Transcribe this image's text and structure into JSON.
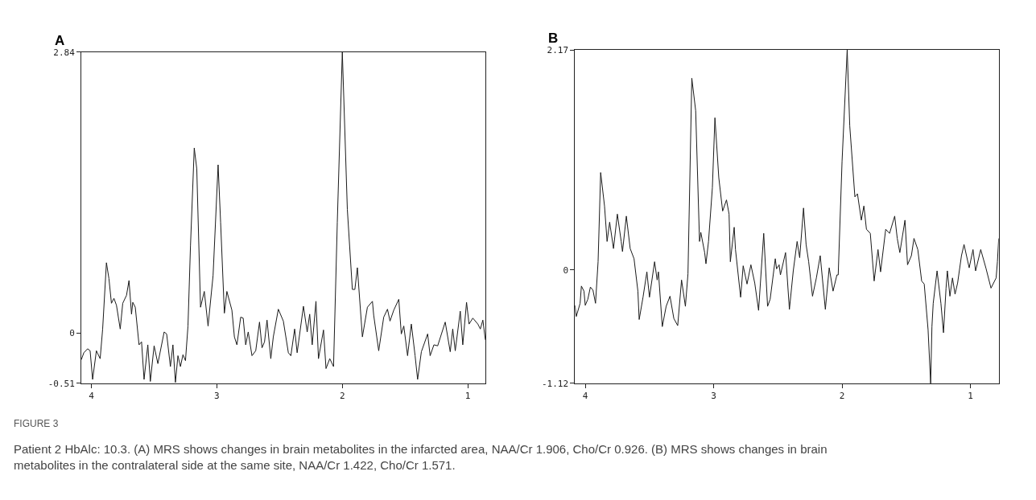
{
  "chart_data": [
    {
      "type": "line",
      "title": "A",
      "xlim": [
        4.08,
        0.86
      ],
      "xticks": [
        4,
        3,
        2,
        1
      ],
      "ylim": [
        -0.51,
        2.84
      ],
      "yticks": [
        2.84,
        0,
        -0.51
      ],
      "marker": "none",
      "line_style": "solid",
      "annotations": [
        "FIGURE 3",
        "Patient 2 HbAlc: 10.3. (A) MRS shows changes in brain metabolites in the infarcted area, NAA/Cr 1.906, Cho/Cr 0.926. (B) MRS shows changes in brain metabolites in the contralateral side at the same site, NAA/Cr 1.422, Cho/Cr 1.571."
      ],
      "x": [
        4.08,
        4.06,
        4.03,
        4.01,
        3.99,
        3.96,
        3.93,
        3.91,
        3.88,
        3.86,
        3.84,
        3.82,
        3.8,
        3.77,
        3.75,
        3.72,
        3.7,
        3.68,
        3.67,
        3.65,
        3.62,
        3.6,
        3.58,
        3.55,
        3.53,
        3.5,
        3.47,
        3.42,
        3.4,
        3.37,
        3.35,
        3.33,
        3.31,
        3.29,
        3.27,
        3.25,
        3.23,
        3.21,
        3.18,
        3.16,
        3.13,
        3.1,
        3.07,
        3.03,
        2.99,
        2.97,
        2.94,
        2.92,
        2.88,
        2.86,
        2.84,
        2.81,
        2.79,
        2.77,
        2.75,
        2.72,
        2.69,
        2.66,
        2.64,
        2.62,
        2.6,
        2.57,
        2.55,
        2.51,
        2.47,
        2.43,
        2.41,
        2.38,
        2.36,
        2.31,
        2.28,
        2.26,
        2.24,
        2.21,
        2.19,
        2.15,
        2.13,
        2.1,
        2.07,
        2.04,
        2.0,
        1.96,
        1.92,
        1.9,
        1.88,
        1.84,
        1.8,
        1.76,
        1.75,
        1.71,
        1.67,
        1.64,
        1.62,
        1.59,
        1.55,
        1.53,
        1.51,
        1.48,
        1.45,
        1.42,
        1.4,
        1.37,
        1.32,
        1.3,
        1.27,
        1.24,
        1.18,
        1.14,
        1.12,
        1.1,
        1.06,
        1.04,
        1.01,
        0.99,
        0.96,
        0.92,
        0.9,
        0.88,
        0.86
      ],
      "series": [
        {
          "color": "#1a1a1a",
          "values": [
            -0.27,
            -0.2,
            -0.16,
            -0.18,
            -0.47,
            -0.18,
            -0.26,
            0.04,
            0.71,
            0.55,
            0.3,
            0.35,
            0.28,
            0.04,
            0.3,
            0.38,
            0.53,
            0.19,
            0.31,
            0.26,
            -0.12,
            -0.09,
            -0.47,
            -0.12,
            -0.49,
            -0.13,
            -0.31,
            0.01,
            -0.01,
            -0.34,
            -0.12,
            -0.5,
            -0.23,
            -0.34,
            -0.22,
            -0.28,
            0.07,
            0.88,
            1.87,
            1.66,
            0.26,
            0.42,
            0.07,
            0.58,
            1.7,
            1.12,
            0.2,
            0.42,
            0.23,
            -0.04,
            -0.12,
            0.16,
            0.15,
            -0.12,
            0.01,
            -0.23,
            -0.18,
            0.11,
            -0.15,
            -0.09,
            0.13,
            -0.26,
            -0.04,
            0.24,
            0.12,
            -0.2,
            -0.23,
            0.04,
            -0.2,
            0.27,
            0.01,
            0.19,
            -0.12,
            0.32,
            -0.26,
            0.03,
            -0.36,
            -0.26,
            -0.34,
            1.12,
            2.84,
            1.25,
            0.44,
            0.44,
            0.66,
            -0.04,
            0.26,
            0.32,
            0.18,
            -0.18,
            0.16,
            0.24,
            0.12,
            0.23,
            0.34,
            -0.01,
            0.07,
            -0.23,
            0.09,
            -0.23,
            -0.47,
            -0.19,
            -0.01,
            -0.23,
            -0.12,
            -0.13,
            0.11,
            -0.19,
            0.04,
            -0.18,
            0.22,
            -0.12,
            0.31,
            0.09,
            0.15,
            0.09,
            0.04,
            0.13,
            -0.07
          ]
        }
      ]
    },
    {
      "type": "line",
      "title": "B",
      "xlim": [
        4.08,
        0.78
      ],
      "xticks": [
        4,
        3,
        2,
        1
      ],
      "ylim": [
        -1.12,
        2.17
      ],
      "yticks": [
        2.17,
        0,
        -1.12
      ],
      "marker": "none",
      "line_style": "solid",
      "x": [
        4.08,
        4.07,
        4.04,
        4.03,
        4.01,
        4.0,
        3.98,
        3.96,
        3.94,
        3.92,
        3.9,
        3.88,
        3.85,
        3.83,
        3.81,
        3.78,
        3.75,
        3.72,
        3.71,
        3.68,
        3.65,
        3.62,
        3.59,
        3.58,
        3.55,
        3.52,
        3.5,
        3.46,
        3.44,
        3.43,
        3.4,
        3.37,
        3.34,
        3.31,
        3.28,
        3.25,
        3.22,
        3.2,
        3.17,
        3.14,
        3.11,
        3.1,
        3.07,
        3.06,
        3.04,
        3.01,
        2.99,
        2.96,
        2.93,
        2.9,
        2.88,
        2.87,
        2.84,
        2.83,
        2.79,
        2.77,
        2.74,
        2.71,
        2.68,
        2.65,
        2.61,
        2.58,
        2.56,
        2.52,
        2.51,
        2.49,
        2.48,
        2.44,
        2.41,
        2.38,
        2.35,
        2.33,
        2.3,
        2.28,
        2.26,
        2.23,
        2.2,
        2.17,
        2.13,
        2.1,
        2.07,
        2.04,
        2.03,
        2.0,
        1.96,
        1.94,
        1.9,
        1.88,
        1.85,
        1.83,
        1.81,
        1.78,
        1.75,
        1.72,
        1.7,
        1.66,
        1.63,
        1.59,
        1.57,
        1.55,
        1.51,
        1.49,
        1.46,
        1.44,
        1.41,
        1.38,
        1.36,
        1.33,
        1.31,
        1.3,
        1.29,
        1.26,
        1.23,
        1.21,
        1.19,
        1.18,
        1.16,
        1.14,
        1.12,
        1.1,
        1.07,
        1.05,
        1.01,
        0.98,
        0.96,
        0.92,
        0.88,
        0.84,
        0.8,
        0.79,
        0.78
      ],
      "series": [
        {
          "color": "#1a1a1a",
          "values": [
            -0.35,
            -0.46,
            -0.33,
            -0.16,
            -0.21,
            -0.35,
            -0.29,
            -0.17,
            -0.2,
            -0.33,
            0.08,
            0.96,
            0.63,
            0.28,
            0.47,
            0.21,
            0.55,
            0.28,
            0.18,
            0.53,
            0.21,
            0.11,
            -0.21,
            -0.49,
            -0.27,
            -0.02,
            -0.27,
            0.08,
            -0.1,
            -0.02,
            -0.56,
            -0.36,
            -0.26,
            -0.48,
            -0.55,
            -0.1,
            -0.36,
            -0.04,
            1.89,
            1.57,
            0.28,
            0.37,
            0.17,
            0.06,
            0.28,
            0.81,
            1.5,
            0.91,
            0.58,
            0.69,
            0.55,
            0.08,
            0.42,
            0.2,
            -0.27,
            0.04,
            -0.14,
            0.05,
            -0.13,
            -0.4,
            0.36,
            -0.36,
            -0.29,
            0.11,
            0.01,
            0.05,
            -0.05,
            0.17,
            -0.39,
            -0.01,
            0.28,
            0.12,
            0.61,
            0.25,
            0.08,
            -0.26,
            -0.08,
            0.14,
            -0.39,
            0.02,
            -0.21,
            -0.05,
            -0.05,
            1.07,
            2.17,
            1.42,
            0.72,
            0.75,
            0.49,
            0.63,
            0.4,
            0.36,
            -0.11,
            0.2,
            -0.02,
            0.4,
            0.36,
            0.53,
            0.31,
            0.17,
            0.49,
            0.05,
            0.14,
            0.31,
            0.2,
            -0.11,
            -0.14,
            -0.59,
            -1.12,
            -0.56,
            -0.33,
            -0.01,
            -0.33,
            -0.62,
            -0.18,
            -0.01,
            -0.26,
            -0.08,
            -0.24,
            -0.13,
            0.14,
            0.25,
            0.02,
            0.2,
            -0.01,
            0.2,
            0.02,
            -0.18,
            -0.08,
            0.08,
            0.31
          ]
        }
      ]
    }
  ]
}
